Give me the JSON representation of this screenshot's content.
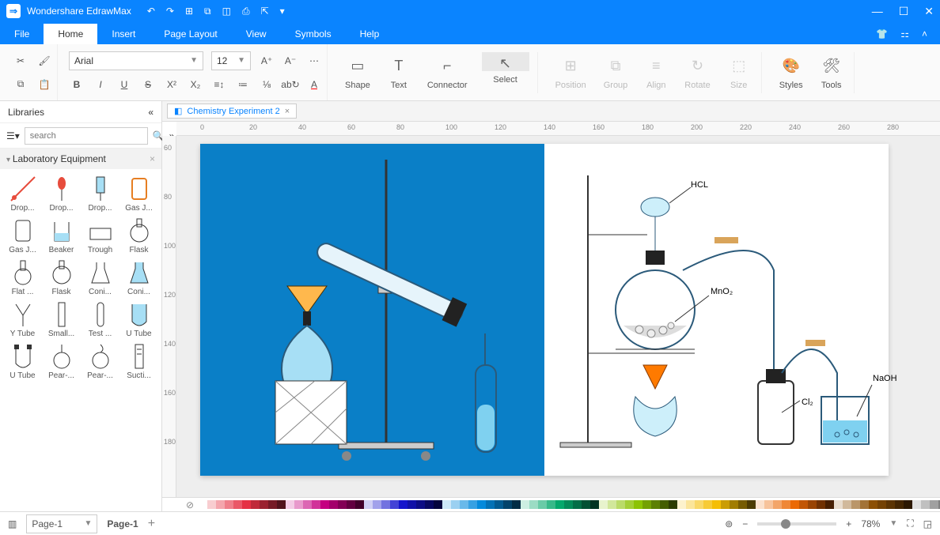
{
  "app": {
    "title": "Wondershare EdrawMax"
  },
  "menus": [
    "File",
    "Home",
    "Insert",
    "Page Layout",
    "View",
    "Symbols",
    "Help"
  ],
  "active_menu": 1,
  "font": {
    "name": "Arial",
    "size": "12"
  },
  "ribbon_big": [
    {
      "label": "Shape",
      "dis": false
    },
    {
      "label": "Text",
      "dis": false
    },
    {
      "label": "Connector",
      "dis": false
    },
    {
      "label": "Select",
      "dis": false,
      "selected": true
    },
    {
      "label": "Position",
      "dis": true
    },
    {
      "label": "Group",
      "dis": true
    },
    {
      "label": "Align",
      "dis": true
    },
    {
      "label": "Rotate",
      "dis": true
    },
    {
      "label": "Size",
      "dis": true
    },
    {
      "label": "Styles",
      "dis": false
    },
    {
      "label": "Tools",
      "dis": false
    }
  ],
  "library": {
    "title": "Libraries",
    "search_ph": "search",
    "category": "Laboratory Equipment",
    "items": [
      "Drop...",
      "Drop...",
      "Drop...",
      "Gas J...",
      "Gas J...",
      "Beaker",
      "Trough",
      "Flask",
      "Flat ...",
      "Flask",
      "Coni...",
      "Coni...",
      "Y Tube",
      "Small...",
      "Test ...",
      "U Tube",
      "U Tube",
      "Pear-...",
      "Pear-...",
      "Sucti..."
    ]
  },
  "doc": {
    "tab": "Chemistry Experiment 2"
  },
  "labels": {
    "hcl": "HCL",
    "mno2": "MnO₂",
    "cl2": "Cl₂",
    "naoh": "NaOH"
  },
  "ruler_h": [
    "0",
    "20",
    "40",
    "60",
    "80",
    "100",
    "120",
    "140",
    "160",
    "180",
    "200",
    "220",
    "240",
    "260",
    "280"
  ],
  "ruler_v": [
    "60",
    "80",
    "100",
    "120",
    "140",
    "160",
    "180"
  ],
  "zoom": "78%",
  "page_sel": "Page-1",
  "page_tab": "Page-1",
  "colors": {
    "accent": "#0a84ff",
    "canvas_blue": "#0a7fc7",
    "palette": [
      "#ffffff",
      "#f8cdd0",
      "#f4a6ad",
      "#ef7f8a",
      "#ea5867",
      "#e53144",
      "#c02a3a",
      "#9b2230",
      "#761a26",
      "#51121c",
      "#f3cce6",
      "#e899cc",
      "#dc66b3",
      "#d13399",
      "#c50080",
      "#a4006b",
      "#830055",
      "#620040",
      "#41002b",
      "#d0d0f5",
      "#a1a1eb",
      "#7272e0",
      "#4343d6",
      "#1414cc",
      "#1010a8",
      "#0c0c85",
      "#080861",
      "#04043d",
      "#cde8f8",
      "#9bd0f1",
      "#69b9ea",
      "#37a1e3",
      "#058adc",
      "#0472b6",
      "#035b91",
      "#02436b",
      "#012c45",
      "#cdeee2",
      "#9bdcc4",
      "#69cba7",
      "#37b989",
      "#05a86c",
      "#048b59",
      "#036e47",
      "#025134",
      "#013421",
      "#e8f3cd",
      "#d1e79b",
      "#badb69",
      "#a3cf37",
      "#8cc305",
      "#74a104",
      "#5c8003",
      "#445e02",
      "#2c3d01",
      "#fdf2cd",
      "#fbe59b",
      "#f9d869",
      "#f7cb37",
      "#f5be05",
      "#cb9d04",
      "#a17d03",
      "#775c02",
      "#4d3b01",
      "#fbe1cd",
      "#f7c39b",
      "#f3a569",
      "#ef8737",
      "#eb6905",
      "#c25604",
      "#994403",
      "#703102",
      "#471f01",
      "#e8dccd",
      "#d1b99b",
      "#ba9669",
      "#a37337",
      "#8c5005",
      "#744204",
      "#5c3403",
      "#442602",
      "#2c1801",
      "#e0e0e0",
      "#c0c0c0",
      "#a0a0a0",
      "#808080",
      "#606060",
      "#404040",
      "#202020",
      "#000000"
    ]
  }
}
